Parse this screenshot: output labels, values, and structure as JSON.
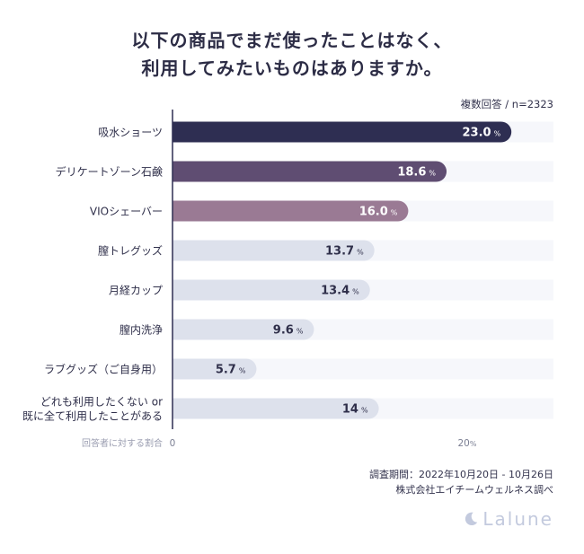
{
  "title": {
    "line1": "以下の商品でまだ使ったことはなく、",
    "line2": "利用してみたいものはありますか。"
  },
  "note": "複数回答 / n=2323",
  "chart_data": {
    "type": "bar",
    "orientation": "horizontal",
    "categories": [
      "吸水ショーツ",
      "デリケートゾーン石鹸",
      "VIOシェーバー",
      "膣トレグッズ",
      "月経カップ",
      "膣内洗浄",
      "ラブグッズ（ご自身用）",
      "どれも利用したくない or\n既に全て利用したことがある"
    ],
    "values": [
      23.0,
      18.6,
      16.0,
      13.7,
      13.4,
      9.6,
      5.7,
      14
    ],
    "value_labels": [
      "23.0",
      "18.6",
      "16.0",
      "13.7",
      "13.4",
      "9.6",
      "5.7",
      "14"
    ],
    "unit": "%",
    "xlim": [
      0,
      25
    ],
    "xticks": [
      {
        "value": 0,
        "label": "0"
      },
      {
        "value": 20,
        "label": "20",
        "unit": "%"
      }
    ],
    "xlabel": "回答者に対する割合",
    "colors": [
      "#2e2e52",
      "#5f4d72",
      "#9a7a94",
      "#dde1ec",
      "#dde1ec",
      "#dde1ec",
      "#dde1ec",
      "#dde1ec"
    ],
    "label_colors": [
      "#ffffff",
      "#ffffff",
      "#ffffff",
      "#2f2f4a",
      "#2f2f4a",
      "#2f2f4a",
      "#2f2f4a",
      "#2f2f4a"
    ],
    "track_color": "#f6f7fb"
  },
  "footer": {
    "period": "調査期間：2022年10月20日 - 10月26日",
    "source": "株式会社エイチームウェルネス調べ"
  },
  "logo": "Lalune"
}
